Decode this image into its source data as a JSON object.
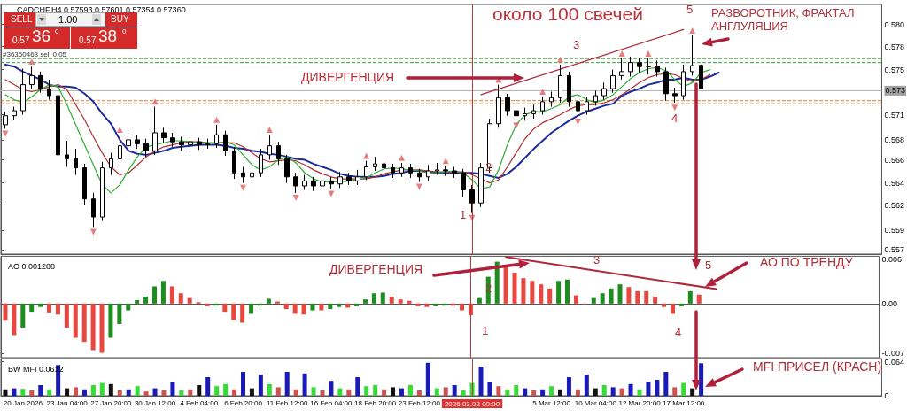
{
  "chart_data": [
    {
      "type": "candlestick",
      "title": "CADCHF,H4 0.57593 0.57601 0.57354 0.57360",
      "categories": [
        null,
        null,
        "20 Jan 2026",
        null,
        null,
        null,
        null,
        "23 Jan 04:00",
        null,
        null,
        null,
        null,
        "27 Jan 20:00",
        null,
        null,
        null,
        null,
        "30 Jan 12:00",
        null,
        null,
        null,
        null,
        "4 Feb 04:00",
        null,
        null,
        null,
        null,
        "6 Feb 20:00",
        null,
        null,
        null,
        null,
        "11 Feb 12:00",
        null,
        null,
        null,
        null,
        "16 Feb 04:00",
        null,
        null,
        null,
        null,
        "18 Feb 20:00",
        null,
        null,
        null,
        null,
        "23 Feb 12:00",
        null,
        null,
        null,
        null,
        null,
        "2026.03.02 00:00",
        null,
        null,
        null,
        null,
        null,
        null,
        null,
        null,
        "5 Mar 12:00",
        null,
        null,
        null,
        null,
        "10 Mar 04:00",
        null,
        null,
        null,
        null,
        "12 Mar 20:00",
        null,
        null,
        null,
        null,
        "17 Mar 12:00",
        null,
        null,
        null,
        null,
        null,
        null,
        null,
        null,
        null,
        null,
        null,
        null,
        null,
        null,
        null,
        null,
        null,
        null,
        null,
        null,
        null,
        null
      ],
      "ohlc": [
        [
          0.57,
          0.5713,
          0.5696,
          0.5709
        ],
        [
          0.5709,
          0.5718,
          0.5705,
          0.5714
        ],
        [
          0.5714,
          0.5756,
          0.571,
          0.574
        ],
        [
          0.574,
          0.5758,
          0.5736,
          0.5749
        ],
        [
          0.5749,
          0.5753,
          0.5732,
          0.5736
        ],
        [
          0.5736,
          0.5745,
          0.5725,
          0.5729
        ],
        [
          0.5729,
          0.5733,
          0.5662,
          0.567
        ],
        [
          0.567,
          0.5684,
          0.5658,
          0.5666
        ],
        [
          0.5666,
          0.5676,
          0.565,
          0.5657
        ],
        [
          0.5657,
          0.5661,
          0.562,
          0.5626
        ],
        [
          0.5626,
          0.5632,
          0.5598,
          0.5608
        ],
        [
          0.5608,
          0.5663,
          0.5604,
          0.5657
        ],
        [
          0.5657,
          0.5672,
          0.565,
          0.5666
        ],
        [
          0.5666,
          0.569,
          0.5661,
          0.5679
        ],
        [
          0.5679,
          0.5692,
          0.5673,
          0.5685
        ],
        [
          0.5685,
          0.569,
          0.5676,
          0.5681
        ],
        [
          0.5681,
          0.5686,
          0.5668,
          0.5674
        ],
        [
          0.5674,
          0.5718,
          0.567,
          0.5692
        ],
        [
          0.5692,
          0.5697,
          0.5682,
          0.5687
        ],
        [
          0.5687,
          0.5692,
          0.5678,
          0.5683
        ],
        [
          0.5683,
          0.5688,
          0.5674,
          0.568
        ],
        [
          0.568,
          0.5689,
          0.5675,
          0.5683
        ],
        [
          0.5683,
          0.5687,
          0.5675,
          0.568
        ],
        [
          0.568,
          0.5686,
          0.5676,
          0.5681
        ],
        [
          0.5681,
          0.57,
          0.5677,
          0.569
        ],
        [
          0.569,
          0.5694,
          0.5669,
          0.5674
        ],
        [
          0.5674,
          0.5678,
          0.5646,
          0.5652
        ],
        [
          0.5652,
          0.5658,
          0.5642,
          0.5648
        ],
        [
          0.5648,
          0.5658,
          0.5643,
          0.5652
        ],
        [
          0.5652,
          0.5676,
          0.5648,
          0.567
        ],
        [
          0.567,
          0.569,
          0.5665,
          0.5679
        ],
        [
          0.5679,
          0.5683,
          0.566,
          0.5666
        ],
        [
          0.5666,
          0.567,
          0.5642,
          0.5648
        ],
        [
          0.5648,
          0.5652,
          0.5632,
          0.5639
        ],
        [
          0.5639,
          0.565,
          0.5635,
          0.5644
        ],
        [
          0.5644,
          0.5648,
          0.5634,
          0.5639
        ],
        [
          0.5639,
          0.5649,
          0.5635,
          0.5644
        ],
        [
          0.5644,
          0.5648,
          0.5636,
          0.5641
        ],
        [
          0.5641,
          0.5653,
          0.5637,
          0.5648
        ],
        [
          0.5648,
          0.5652,
          0.564,
          0.5644
        ],
        [
          0.5644,
          0.5655,
          0.564,
          0.5648
        ],
        [
          0.5648,
          0.5664,
          0.5645,
          0.5658
        ],
        [
          0.5658,
          0.5668,
          0.5654,
          0.5661
        ],
        [
          0.5661,
          0.5666,
          0.5652,
          0.5657
        ],
        [
          0.5657,
          0.5661,
          0.5647,
          0.5652
        ],
        [
          0.5652,
          0.5662,
          0.5648,
          0.5657
        ],
        [
          0.5657,
          0.5661,
          0.5647,
          0.5652
        ],
        [
          0.5652,
          0.5656,
          0.5643,
          0.5648
        ],
        [
          0.5648,
          0.566,
          0.5644,
          0.5654
        ],
        [
          0.5654,
          0.5662,
          0.565,
          0.5655
        ],
        [
          0.5655,
          0.5659,
          0.5649,
          0.5654
        ],
        [
          0.5654,
          0.5658,
          0.5647,
          0.5652
        ],
        [
          0.5652,
          0.5656,
          0.5628,
          0.5635
        ],
        [
          0.5635,
          0.564,
          0.5612,
          0.5622
        ],
        [
          0.5622,
          0.5662,
          0.5618,
          0.5657
        ],
        [
          0.5657,
          0.5706,
          0.5652,
          0.5701
        ],
        [
          0.5701,
          0.574,
          0.5697,
          0.5727
        ],
        [
          0.5727,
          0.5731,
          0.5709,
          0.5714
        ],
        [
          0.5714,
          0.572,
          0.5704,
          0.5709
        ],
        [
          0.5709,
          0.5717,
          0.5704,
          0.5711
        ],
        [
          0.5711,
          0.572,
          0.5706,
          0.5714
        ],
        [
          0.5714,
          0.5728,
          0.571,
          0.5723
        ],
        [
          0.5723,
          0.5733,
          0.5718,
          0.5727
        ],
        [
          0.5727,
          0.576,
          0.5722,
          0.5749
        ],
        [
          0.5749,
          0.5753,
          0.5718,
          0.5723
        ],
        [
          0.5723,
          0.5727,
          0.5708,
          0.5714
        ],
        [
          0.5714,
          0.5728,
          0.571,
          0.5723
        ],
        [
          0.5723,
          0.5734,
          0.5719,
          0.5729
        ],
        [
          0.5729,
          0.5742,
          0.5725,
          0.5736
        ],
        [
          0.5736,
          0.5755,
          0.5732,
          0.5749
        ],
        [
          0.5749,
          0.5766,
          0.5745,
          0.5753
        ],
        [
          0.5753,
          0.5768,
          0.5748,
          0.5762
        ],
        [
          0.5762,
          0.5767,
          0.5752,
          0.5758
        ],
        [
          0.5758,
          0.5766,
          0.575,
          0.5758
        ],
        [
          0.5758,
          0.5764,
          0.5748,
          0.5753
        ],
        [
          0.5753,
          0.5757,
          0.5724,
          0.5731
        ],
        [
          0.5731,
          0.5737,
          0.5722,
          0.5729
        ],
        [
          0.5729,
          0.576,
          0.5725,
          0.5753
        ],
        [
          0.5753,
          0.5789,
          0.5749,
          0.5759
        ],
        [
          0.57593,
          0.57601,
          0.57354,
          0.5736
        ],
        null,
        null,
        null,
        null,
        null,
        null,
        null,
        null,
        null,
        null,
        null,
        null,
        null,
        null,
        null,
        null,
        null,
        null,
        null,
        null
      ],
      "series": [
        {
          "type": "line",
          "color": "#1c2b9c",
          "values": [
            0.576,
            0.5758,
            0.5753,
            0.5749,
            0.5745,
            0.574,
            0.5738,
            0.5738,
            0.5737,
            0.5731,
            0.5723,
            0.5711,
            0.5701,
            0.5685,
            0.5674,
            0.5671,
            0.567,
            0.5672,
            0.5674,
            0.5677,
            0.5678,
            0.5679,
            0.568,
            0.568,
            0.568,
            0.5679,
            0.5677,
            0.5676,
            0.5674,
            0.5673,
            0.5671,
            0.567,
            0.5668,
            0.5666,
            0.5665,
            0.5661,
            0.5658,
            0.5655,
            0.5651,
            0.5649,
            0.5648,
            0.5648,
            0.5648,
            0.5649,
            0.5651,
            0.5652,
            0.5654,
            0.5654,
            0.5653,
            0.5652,
            0.5652,
            0.5652,
            0.5652,
            0.5652,
            0.5651,
            0.5649,
            0.5647,
            0.5651,
            0.5658,
            0.5667,
            0.5676,
            0.5684,
            0.5692,
            0.5698,
            0.5704,
            0.5709,
            0.5713,
            0.5716,
            0.5719,
            0.5721,
            0.5729,
            0.5733,
            0.5736,
            0.574,
            0.5742,
            0.5745,
            0.5745,
            0.5747,
            0.5745,
            0.5745,
            0.5748,
            0.5752,
            null,
            null,
            null,
            null,
            null,
            null,
            null,
            null,
            null,
            null,
            null,
            null,
            null,
            null,
            null,
            null,
            null,
            null
          ]
        },
        {
          "type": "line",
          "color": "#b03030",
          "values": [
            0.5745,
            0.574,
            0.5735,
            0.5733,
            0.5735,
            0.5738,
            0.574,
            0.5735,
            0.572,
            0.5705,
            0.5688,
            0.5672,
            0.5658,
            0.565,
            0.5652,
            0.566,
            0.5668,
            0.5674,
            0.5678,
            0.568,
            0.5682,
            0.5683,
            0.5683,
            0.5682,
            0.5682,
            0.5682,
            0.5682,
            0.5678,
            0.5672,
            0.5666,
            0.5663,
            0.5664,
            0.5665,
            0.5664,
            0.566,
            0.5655,
            0.5651,
            0.5648,
            0.5646,
            0.5646,
            0.5646,
            0.5646,
            0.5648,
            0.5651,
            0.5653,
            0.5655,
            0.5655,
            0.5655,
            0.5654,
            0.5653,
            0.5653,
            0.5653,
            0.5653,
            0.565,
            0.5646,
            0.5642,
            0.5645,
            0.5658,
            0.5672,
            0.5686,
            0.5696,
            0.5702,
            0.5706,
            0.571,
            0.5715,
            0.5719,
            0.572,
            0.572,
            0.5722,
            0.5725,
            0.573,
            0.5736,
            0.5742,
            0.5747,
            0.575,
            0.5751,
            0.575,
            0.5746,
            0.5743,
            0.5745,
            0.575,
            null,
            null,
            null,
            null,
            null,
            null,
            null,
            null,
            null,
            null,
            null,
            null,
            null,
            null,
            null,
            null,
            null,
            null,
            null
          ]
        },
        {
          "type": "line",
          "color": "#2fae2f",
          "values": [
            0.573,
            0.5725,
            0.5722,
            0.5728,
            0.5735,
            0.574,
            0.5738,
            0.572,
            0.57,
            0.568,
            0.566,
            0.564,
            0.5632,
            0.564,
            0.5655,
            0.5668,
            0.5678,
            0.568,
            0.5682,
            0.5684,
            0.5684,
            0.5683,
            0.5682,
            0.5682,
            0.5682,
            0.5683,
            0.568,
            0.567,
            0.566,
            0.5655,
            0.5658,
            0.5665,
            0.5668,
            0.5662,
            0.5652,
            0.5646,
            0.5643,
            0.5643,
            0.5643,
            0.5644,
            0.5645,
            0.5647,
            0.5652,
            0.5656,
            0.5657,
            0.5656,
            0.5655,
            0.5654,
            0.5652,
            0.5652,
            0.5653,
            0.5654,
            0.5652,
            0.5645,
            0.5636,
            0.5638,
            0.5655,
            0.568,
            0.57,
            0.571,
            0.5713,
            0.5713,
            0.5716,
            0.572,
            0.5728,
            0.573,
            0.5725,
            0.5722,
            0.5725,
            0.573,
            0.5738,
            0.5746,
            0.5752,
            0.5756,
            0.5757,
            0.5754,
            0.5745,
            0.5738,
            0.5742,
            0.5752,
            0.5755,
            null,
            null,
            null,
            null,
            null,
            null,
            null,
            null,
            null,
            null,
            null,
            null,
            null,
            null,
            null,
            null,
            null,
            null,
            null
          ]
        },
        {
          "type": "line",
          "color": "#b0283c",
          "values": [
            null,
            null,
            null,
            null,
            null,
            null,
            null,
            null,
            null,
            null,
            null,
            null,
            null,
            null,
            null,
            null,
            null,
            null,
            null,
            null,
            null,
            null,
            null,
            null,
            null,
            null,
            null,
            null,
            null,
            null,
            null,
            null,
            null,
            null,
            null,
            null,
            null,
            null,
            null,
            null,
            null,
            null,
            null,
            null,
            null,
            null,
            null,
            null,
            null,
            null,
            null,
            null,
            null,
            null,
            0.573,
            null,
            null,
            null,
            null,
            null,
            null,
            null,
            null,
            null,
            null,
            null,
            null,
            null,
            null,
            null,
            null,
            null,
            null,
            null,
            null,
            null,
            null,
            0.5795,
            null,
            null,
            null,
            null,
            null,
            null,
            null,
            null,
            null,
            null,
            null,
            null,
            null,
            null,
            null,
            null,
            null,
            null,
            null,
            null,
            null,
            null
          ]
        },
        {
          "type": "scatter",
          "marker": "triangle",
          "color": "#e06060",
          "values": [
            null,
            null,
            null,
            0.5763,
            null,
            null,
            null,
            null,
            null,
            null,
            null,
            null,
            null,
            0.5695,
            null,
            null,
            null,
            0.5723,
            null,
            null,
            null,
            null,
            null,
            null,
            0.5705,
            null,
            null,
            null,
            null,
            null,
            0.5695,
            null,
            null,
            null,
            null,
            null,
            null,
            null,
            null,
            null,
            null,
            0.5669,
            null,
            null,
            null,
            0.5667,
            null,
            null,
            null,
            null,
            0.5664,
            null,
            null,
            null,
            null,
            null,
            0.5745,
            null,
            null,
            null,
            null,
            0.5733,
            null,
            0.5765,
            null,
            null,
            null,
            null,
            null,
            null,
            0.5771,
            null,
            null,
            0.5771,
            null,
            null,
            null,
            null,
            0.5794,
            null,
            null,
            null,
            null,
            null,
            null,
            null,
            null,
            null,
            null,
            null,
            null,
            null,
            null,
            null,
            null,
            null,
            null,
            null,
            null,
            null
          ]
        },
        {
          "type": "scatter",
          "marker": "triangle",
          "color": "#e06060",
          "values": [
            0.5691,
            null,
            null,
            null,
            null,
            null,
            null,
            null,
            null,
            null,
            0.5593,
            null,
            null,
            null,
            null,
            null,
            null,
            null,
            null,
            null,
            null,
            null,
            null,
            null,
            null,
            null,
            null,
            0.5637,
            null,
            null,
            null,
            null,
            null,
            0.5627,
            null,
            null,
            null,
            0.5631,
            null,
            null,
            null,
            null,
            null,
            null,
            null,
            null,
            null,
            0.5638,
            null,
            null,
            null,
            null,
            null,
            0.5607,
            null,
            null,
            null,
            null,
            0.5699,
            null,
            null,
            null,
            null,
            null,
            null,
            0.5703,
            null,
            null,
            null,
            null,
            null,
            null,
            null,
            null,
            null,
            null,
            0.5717,
            null,
            null,
            null,
            null,
            null,
            null,
            null,
            null,
            null,
            null,
            null,
            null,
            null,
            null,
            null,
            null,
            null,
            null,
            null,
            null,
            null,
            null,
            null
          ]
        }
      ],
      "ylim": [
        0.5571,
        0.582
      ],
      "yticks": [
        {
          "value": 0.58,
          "label": "0.580"
        },
        {
          "value": 0.5778,
          "label": "0.578"
        },
        {
          "value": 0.5755,
          "label": "0.575"
        },
        {
          "value": 0.571,
          "label": "0.571"
        },
        {
          "value": 0.5685,
          "label": "0.568"
        },
        {
          "value": 0.5665,
          "label": "0.566"
        },
        {
          "value": 0.5642,
          "label": "0.564"
        },
        {
          "value": 0.562,
          "label": "0.562"
        },
        {
          "value": 0.5595,
          "label": "0.559"
        },
        {
          "value": 0.5575,
          "label": "0.557"
        }
      ],
      "tick_labels": "y",
      "ref_lines": [
        {
          "axis": "y",
          "value": 0.5766,
          "label": "#36350463 sell 0.05",
          "color": "#3a9a3a",
          "line_style": "dashed"
        },
        {
          "axis": "y",
          "value": 0.5762,
          "color": "#3a9a3a",
          "line_style": "dashed"
        },
        {
          "axis": "y",
          "value": 0.5724,
          "color": "#d08040",
          "line_style": "dashed"
        },
        {
          "axis": "y",
          "value": 0.5721,
          "color": "#d08040",
          "line_style": "dashed"
        },
        {
          "axis": "y",
          "value": 0.5734,
          "label": "0.573",
          "color": "#b0b0b0",
          "line_style": "solid"
        },
        {
          "axis": "x",
          "value": "2026.03.02 00:00",
          "color": "#b04040",
          "line_style": "solid"
        }
      ],
      "annotations": [
        "SELL",
        "1.00",
        "BUY",
        "0.57",
        "36",
        "0",
        "0.57",
        "38",
        "0",
        "около 100 свечей",
        "ДИВЕРГЕНЦИЯ",
        "РАЗВОРОТНИК, ФРАКТАЛ АНГЛУЛЯЦИЯ",
        "1",
        "2",
        "3",
        "4",
        "5"
      ]
    },
    {
      "type": "bar",
      "title": "AO 0.001288",
      "categories": [
        null,
        null,
        "20 Jan 2026",
        null,
        null,
        null,
        null,
        "23 Jan 04:00",
        null,
        null,
        null,
        null,
        "27 Jan 20:00",
        null,
        null,
        null,
        null,
        "30 Jan 12:00",
        null,
        null,
        null,
        null,
        "4 Feb 04:00",
        null,
        null,
        null,
        null,
        "6 Feb 20:00",
        null,
        null,
        null,
        null,
        "11 Feb 12:00",
        null,
        null,
        null,
        null,
        "16 Feb 04:00",
        null,
        null,
        null,
        null,
        "18 Feb 20:00",
        null,
        null,
        null,
        null,
        "23 Feb 12:00",
        null,
        null,
        null,
        null,
        null,
        "2026.03.02 00:00",
        null,
        null,
        null,
        null,
        null,
        null,
        null,
        null,
        "5 Mar 12:00",
        null,
        null,
        null,
        null,
        "10 Mar 04:00",
        null,
        null,
        null,
        null,
        "12 Mar 20:00",
        null,
        null,
        null,
        null,
        "17 Mar 12:00",
        null,
        null,
        null,
        null,
        null,
        null,
        null,
        null,
        null,
        null,
        null,
        null,
        null,
        null,
        null,
        null,
        null,
        null,
        null,
        null,
        null,
        null
      ],
      "values": [
        -0.0025,
        -0.0046,
        -0.0035,
        -0.0012,
        -0.0005,
        -0.0013,
        -0.0016,
        -0.0035,
        -0.005,
        -0.0056,
        -0.0068,
        -0.0072,
        -0.005,
        -0.003,
        -0.001,
        0.0005,
        0.001,
        0.0025,
        0.0033,
        0.0025,
        0.0015,
        0.0008,
        0.0002,
        -0.0004,
        -0.0003,
        -0.0012,
        -0.0024,
        -0.0028,
        -0.0015,
        -0.0003,
        0.0007,
        0.0003,
        -0.0008,
        -0.0015,
        -0.0016,
        -0.001,
        -0.001,
        -0.0008,
        -0.0005,
        -0.0006,
        -0.0004,
        0.0006,
        0.0015,
        0.0016,
        0.001,
        0.0006,
        0.0004,
        -0.0004,
        -0.0005,
        -0.0004,
        -0.0003,
        -0.0003,
        -0.001,
        -0.0017,
        0.0008,
        0.0039,
        0.0061,
        0.0055,
        0.0045,
        0.0037,
        0.0033,
        0.0028,
        0.0022,
        0.0033,
        0.0035,
        0.0012,
        -0.0001,
        0.0008,
        0.0015,
        0.0022,
        0.0028,
        0.0024,
        0.0018,
        0.0018,
        0.001,
        -0.0005,
        -0.0015,
        -0.0004,
        0.0018,
        0.0013,
        null,
        null,
        null,
        null,
        null,
        null,
        null,
        null,
        null,
        null,
        null,
        null,
        null,
        null,
        null,
        null,
        null,
        null,
        null,
        null
      ],
      "colors": [
        "#e8473f",
        "#e8473f",
        "#1e8c1e",
        "#1e8c1e",
        "#1e8c1e",
        "#e8473f",
        "#e8473f",
        "#e8473f",
        "#e8473f",
        "#e8473f",
        "#e8473f",
        "#e8473f",
        "#1e8c1e",
        "#1e8c1e",
        "#1e8c1e",
        "#1e8c1e",
        "#1e8c1e",
        "#1e8c1e",
        "#1e8c1e",
        "#e8473f",
        "#e8473f",
        "#e8473f",
        "#e8473f",
        "#e8473f",
        "#1e8c1e",
        "#e8473f",
        "#e8473f",
        "#e8473f",
        "#1e8c1e",
        "#1e8c1e",
        "#1e8c1e",
        "#e8473f",
        "#e8473f",
        "#e8473f",
        "#e8473f",
        "#1e8c1e",
        "#e8473f",
        "#1e8c1e",
        "#1e8c1e",
        "#e8473f",
        "#1e8c1e",
        "#1e8c1e",
        "#1e8c1e",
        "#1e8c1e",
        "#e8473f",
        "#e8473f",
        "#e8473f",
        "#e8473f",
        "#e8473f",
        "#1e8c1e",
        "#1e8c1e",
        "#e8473f",
        "#e8473f",
        "#e8473f",
        "#1e8c1e",
        "#1e8c1e",
        "#1e8c1e",
        "#e8473f",
        "#e8473f",
        "#e8473f",
        "#e8473f",
        "#e8473f",
        "#e8473f",
        "#1e8c1e",
        "#1e8c1e",
        "#e8473f",
        "#e8473f",
        "#1e8c1e",
        "#1e8c1e",
        "#1e8c1e",
        "#1e8c1e",
        "#e8473f",
        "#e8473f",
        "#e8473f",
        "#e8473f",
        "#e8473f",
        "#e8473f",
        "#1e8c1e",
        "#1e8c1e",
        "#e8473f",
        null,
        null,
        null,
        null,
        null,
        null,
        null,
        null,
        null,
        null,
        null,
        null,
        null,
        null,
        null,
        null,
        null,
        null,
        null,
        null
      ],
      "series": [
        {
          "type": "line",
          "color": "#b0283c",
          "values": [
            null,
            null,
            null,
            null,
            null,
            null,
            null,
            null,
            null,
            null,
            null,
            null,
            null,
            null,
            null,
            null,
            null,
            null,
            null,
            null,
            null,
            null,
            null,
            null,
            null,
            null,
            null,
            null,
            null,
            null,
            null,
            null,
            null,
            null,
            null,
            null,
            null,
            null,
            null,
            null,
            null,
            null,
            null,
            null,
            null,
            null,
            null,
            null,
            null,
            null,
            null,
            null,
            null,
            null,
            null,
            null,
            null,
            0.0068,
            null,
            null,
            null,
            null,
            null,
            null,
            null,
            null,
            null,
            null,
            null,
            null,
            null,
            null,
            null,
            null,
            null,
            null,
            null,
            null,
            null,
            null,
            null,
            0.0021,
            null,
            null,
            null,
            null,
            null,
            null,
            null,
            null,
            null,
            null,
            null,
            null,
            null,
            null,
            null,
            null,
            null,
            null
          ]
        }
      ],
      "ylim": [
        -0.0079,
        0.0069
      ],
      "yticks": [
        {
          "value": 0.0065,
          "label": "0.006"
        },
        {
          "value": 0,
          "label": "0.00"
        },
        {
          "value": -0.0073,
          "label": "-0.007"
        }
      ],
      "tick_labels": "y",
      "ref_lines": [
        {
          "axis": "x",
          "value": "2026.03.02 00:00",
          "color": "#b04040",
          "line_style": "solid"
        }
      ],
      "annotations": [
        "ДИВЕРГЕНЦИЯ",
        "АО ПО ТРЕНДУ",
        "1",
        "2",
        "3",
        "4",
        "5"
      ]
    },
    {
      "type": "bar",
      "title": "BW MFI 0.0612",
      "categories": [
        null,
        null,
        "20 Jan 2026",
        null,
        null,
        null,
        null,
        "23 Jan 04:00",
        null,
        null,
        null,
        null,
        "27 Jan 20:00",
        null,
        null,
        null,
        null,
        "30 Jan 12:00",
        null,
        null,
        null,
        null,
        "4 Feb 04:00",
        null,
        null,
        null,
        null,
        "6 Feb 20:00",
        null,
        null,
        null,
        null,
        "11 Feb 12:00",
        null,
        null,
        null,
        null,
        "16 Feb 04:00",
        null,
        null,
        null,
        null,
        "18 Feb 20:00",
        null,
        null,
        null,
        null,
        "23 Feb 12:00",
        null,
        null,
        null,
        null,
        null,
        "2026.03.02 00:00",
        null,
        null,
        null,
        null,
        null,
        null,
        null,
        null,
        "5 Mar 12:00",
        null,
        null,
        null,
        null,
        "10 Mar 04:00",
        null,
        null,
        null,
        null,
        "12 Mar 20:00",
        null,
        null,
        null,
        null,
        "17 Mar 12:00",
        null,
        null,
        null,
        null,
        null,
        null,
        null,
        null,
        null,
        null,
        null,
        null,
        null,
        null,
        null,
        null,
        null,
        null,
        null,
        null,
        null,
        null
      ],
      "values": [
        0.012,
        0.014,
        0.013,
        0.01,
        0.02,
        0.012,
        0.058,
        0.014,
        0.016,
        0.012,
        0.02,
        0.024,
        0.022,
        0.01,
        0.012,
        0.018,
        0.008,
        0.014,
        0.01,
        0.025,
        0.01,
        0.012,
        0.02,
        0.035,
        0.018,
        0.022,
        0.012,
        0.045,
        0.014,
        0.04,
        0.022,
        0.016,
        0.045,
        0.012,
        0.042,
        0.016,
        0.01,
        0.028,
        0.014,
        0.012,
        0.035,
        0.018,
        0.02,
        0.012,
        0.016,
        0.014,
        0.02,
        0.01,
        0.062,
        0.014,
        0.016,
        0.02,
        0.01,
        0.024,
        0.055,
        0.025,
        0.018,
        0.012,
        0.02,
        0.014,
        0.01,
        0.012,
        0.018,
        0.012,
        0.035,
        0.012,
        0.04,
        0.014,
        0.02,
        0.016,
        0.014,
        0.022,
        0.012,
        0.026,
        0.03,
        0.045,
        0.016,
        0.024,
        0.014,
        0.0612,
        null,
        null,
        null,
        null,
        null,
        null,
        null,
        null,
        null,
        null,
        null,
        null,
        null,
        null,
        null,
        null,
        null,
        null,
        null,
        null
      ],
      "colors": [
        "#111111",
        "#1a1ab8",
        "#33dd33",
        "#d05050",
        "#1a1ab8",
        "#33dd33",
        "#1a1ab8",
        "#111111",
        "#d05050",
        "#1a1ab8",
        "#33dd33",
        "#33dd33",
        "#111111",
        "#d05050",
        "#1a1ab8",
        "#33dd33",
        "#d05050",
        "#1a1ab8",
        "#d05050",
        "#1a1ab8",
        "#33dd33",
        "#d05050",
        "#111111",
        "#1a1ab8",
        "#33dd33",
        "#33dd33",
        "#d05050",
        "#1a1ab8",
        "#111111",
        "#1a1ab8",
        "#33dd33",
        "#d05050",
        "#1a1ab8",
        "#d05050",
        "#1a1ab8",
        "#33dd33",
        "#d05050",
        "#1a1ab8",
        "#33dd33",
        "#d05050",
        "#1a1ab8",
        "#33dd33",
        "#33dd33",
        "#d05050",
        "#111111",
        "#1a1ab8",
        "#33dd33",
        "#d05050",
        "#1a1ab8",
        "#33dd33",
        "#d05050",
        "#1a1ab8",
        "#33dd33",
        "#33dd33",
        "#1a1ab8",
        "#1a1ab8",
        "#d05050",
        "#33dd33",
        "#33dd33",
        "#1a1ab8",
        "#d05050",
        "#1a1ab8",
        "#33dd33",
        "#111111",
        "#1a1ab8",
        "#d05050",
        "#1a1ab8",
        "#111111",
        "#33dd33",
        "#1a1ab8",
        "#d05050",
        "#1a1ab8",
        "#33dd33",
        "#1a1ab8",
        "#1a1ab8",
        "#1a1ab8",
        "#d05050",
        "#33dd33",
        "#111111",
        "#1a1ab8",
        null,
        null,
        null,
        null,
        null,
        null,
        null,
        null,
        null,
        null,
        null,
        null,
        null,
        null,
        null,
        null,
        null,
        null,
        null,
        null
      ],
      "ylim": [
        0,
        0.07
      ],
      "yticks": [
        0,
        {
          "value": 0.064,
          "label": "0.064"
        }
      ],
      "ref_lines": [
        {
          "axis": "x",
          "value": "2026.03.02 00:00",
          "color": "#b04040",
          "line_style": "solid"
        }
      ],
      "annotations": [
        "MFI ПРИСЕЛ (КРАСН)"
      ]
    }
  ]
}
